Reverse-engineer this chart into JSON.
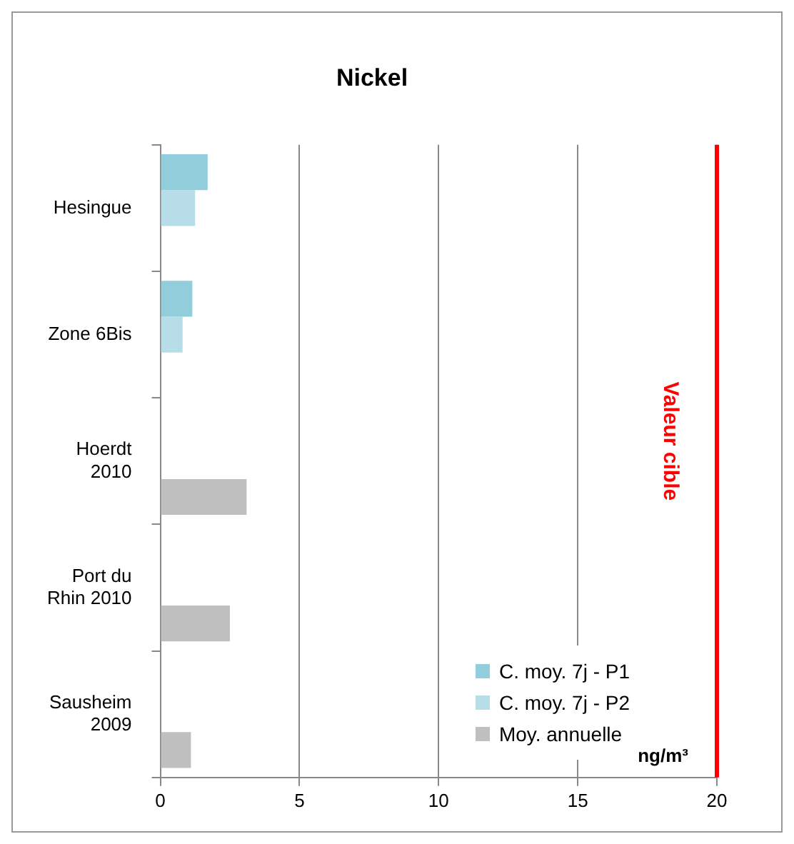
{
  "chart_data": {
    "type": "bar",
    "orientation": "horizontal",
    "title": "Nickel",
    "xlabel": "ng/m³",
    "categories": [
      "Hesingue",
      "Zone 6Bis",
      "Hoerdt 2010",
      "Port du Rhin 2010",
      "Sausheim 2009"
    ],
    "series": [
      {
        "name": "C. moy. 7j - P1",
        "color": "#92cddc",
        "values": [
          1.7,
          1.15,
          null,
          null,
          null
        ]
      },
      {
        "name": "C. moy. 7j - P2",
        "color": "#b7dee8",
        "values": [
          1.25,
          0.8,
          null,
          null,
          null
        ]
      },
      {
        "name": "Moy. annuelle",
        "color": "#bfbfbf",
        "values": [
          null,
          null,
          3.1,
          2.5,
          1.1
        ]
      }
    ],
    "xlim": [
      0,
      20
    ],
    "xticks": [
      0,
      5,
      10,
      15,
      20
    ],
    "grid": "x",
    "legend": "bottom right",
    "ref_lines": [
      {
        "axis": "x",
        "value": 20,
        "label": "Valeur cible",
        "color": "#ff0000"
      }
    ]
  }
}
